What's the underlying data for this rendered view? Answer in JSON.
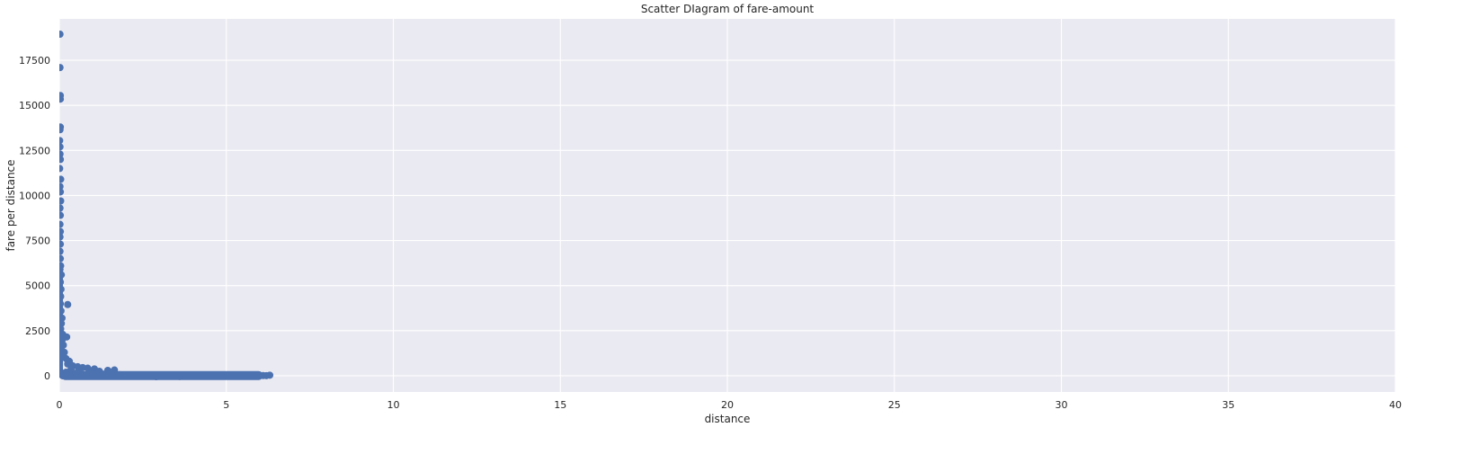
{
  "chart_data": {
    "type": "scatter",
    "title": "Scatter DIagram of fare-amount",
    "xlabel": "distance",
    "ylabel": "fare per distance",
    "xlim": [
      0,
      40
    ],
    "ylim": [
      -900,
      19800
    ],
    "x_ticks": [
      0,
      5,
      10,
      15,
      20,
      25,
      30,
      35,
      40
    ],
    "y_ticks": [
      0,
      2500,
      5000,
      7500,
      10000,
      12500,
      15000,
      17500
    ],
    "grid": true,
    "background": "#EAEAF2",
    "grid_color": "#FFFFFF",
    "marker_color": "#4C72B0",
    "points": [
      {
        "x": 0.02,
        "y": 18950
      },
      {
        "x": 0.02,
        "y": 17100
      },
      {
        "x": 0.03,
        "y": 15550
      },
      {
        "x": 0.03,
        "y": 15350
      },
      {
        "x": 0.03,
        "y": 13800
      },
      {
        "x": 0.02,
        "y": 13650
      },
      {
        "x": 0.01,
        "y": 13050
      },
      {
        "x": 0.02,
        "y": 12700
      },
      {
        "x": 0.02,
        "y": 12300
      },
      {
        "x": 0.03,
        "y": 12000
      },
      {
        "x": 0.01,
        "y": 11500
      },
      {
        "x": 0.04,
        "y": 10900
      },
      {
        "x": 0.02,
        "y": 10500
      },
      {
        "x": 0.03,
        "y": 10200
      },
      {
        "x": 0.04,
        "y": 9700
      },
      {
        "x": 0.02,
        "y": 9300
      },
      {
        "x": 0.03,
        "y": 8900
      },
      {
        "x": 0.02,
        "y": 8400
      },
      {
        "x": 0.03,
        "y": 8000
      },
      {
        "x": 0.02,
        "y": 7700
      },
      {
        "x": 0.03,
        "y": 7300
      },
      {
        "x": 0.02,
        "y": 6900
      },
      {
        "x": 0.03,
        "y": 6500
      },
      {
        "x": 0.04,
        "y": 6100
      },
      {
        "x": 0.02,
        "y": 5900
      },
      {
        "x": 0.06,
        "y": 5600
      },
      {
        "x": 0.03,
        "y": 5200
      },
      {
        "x": 0.05,
        "y": 4800
      },
      {
        "x": 0.04,
        "y": 4400
      },
      {
        "x": 0.03,
        "y": 4000
      },
      {
        "x": 0.25,
        "y": 3950
      },
      {
        "x": 0.05,
        "y": 3600
      },
      {
        "x": 0.08,
        "y": 3200
      },
      {
        "x": 0.06,
        "y": 2900
      },
      {
        "x": 0.04,
        "y": 2600
      },
      {
        "x": 0.1,
        "y": 2300
      },
      {
        "x": 0.22,
        "y": 2150
      },
      {
        "x": 0.08,
        "y": 1950
      },
      {
        "x": 0.12,
        "y": 1700
      },
      {
        "x": 0.05,
        "y": 1500
      },
      {
        "x": 0.15,
        "y": 1300
      },
      {
        "x": 0.1,
        "y": 1100
      },
      {
        "x": 0.2,
        "y": 950
      },
      {
        "x": 0.3,
        "y": 800
      },
      {
        "x": 0.25,
        "y": 650
      },
      {
        "x": 0.4,
        "y": 550
      },
      {
        "x": 0.55,
        "y": 500
      },
      {
        "x": 0.7,
        "y": 450
      },
      {
        "x": 0.85,
        "y": 420
      },
      {
        "x": 1.05,
        "y": 380
      },
      {
        "x": 1.45,
        "y": 300
      },
      {
        "x": 1.65,
        "y": 320
      },
      {
        "x": 1.2,
        "y": 250
      },
      {
        "x": 0.35,
        "y": 350
      },
      {
        "x": 0.6,
        "y": 300
      },
      {
        "x": 0.9,
        "y": 250
      },
      {
        "x": 0.2,
        "y": 200
      },
      {
        "x": 0.5,
        "y": 150
      },
      {
        "x": 1.0,
        "y": 120
      },
      {
        "x": 1.3,
        "y": 100
      },
      {
        "x": 1.8,
        "y": 60
      },
      {
        "x": 2.2,
        "y": 40
      },
      {
        "x": 2.6,
        "y": 30
      },
      {
        "x": 3.0,
        "y": 25
      },
      {
        "x": 3.4,
        "y": 20
      },
      {
        "x": 3.8,
        "y": 20
      },
      {
        "x": 4.2,
        "y": 15
      },
      {
        "x": 4.6,
        "y": 15
      },
      {
        "x": 5.0,
        "y": 12
      },
      {
        "x": 5.35,
        "y": 10
      },
      {
        "x": 5.7,
        "y": 10
      },
      {
        "x": 5.9,
        "y": 8
      },
      {
        "x": 6.1,
        "y": 8
      },
      {
        "x": 6.3,
        "y": 30
      },
      {
        "x": 6.2,
        "y": 5
      },
      {
        "x": 2.9,
        "y": -50
      },
      {
        "x": 3.6,
        "y": -40
      },
      {
        "x": 4.9,
        "y": -30
      },
      {
        "x": 5.5,
        "y": -30
      },
      {
        "x": 1.9,
        "y": -20
      },
      {
        "x": 0.8,
        "y": 10
      },
      {
        "x": 0.1,
        "y": 0
      },
      {
        "x": 0.02,
        "y": 250
      },
      {
        "x": 0.01,
        "y": 100
      }
    ],
    "dense_band": {
      "x_from": 0.05,
      "x_to": 6.1,
      "y": 10
    }
  }
}
